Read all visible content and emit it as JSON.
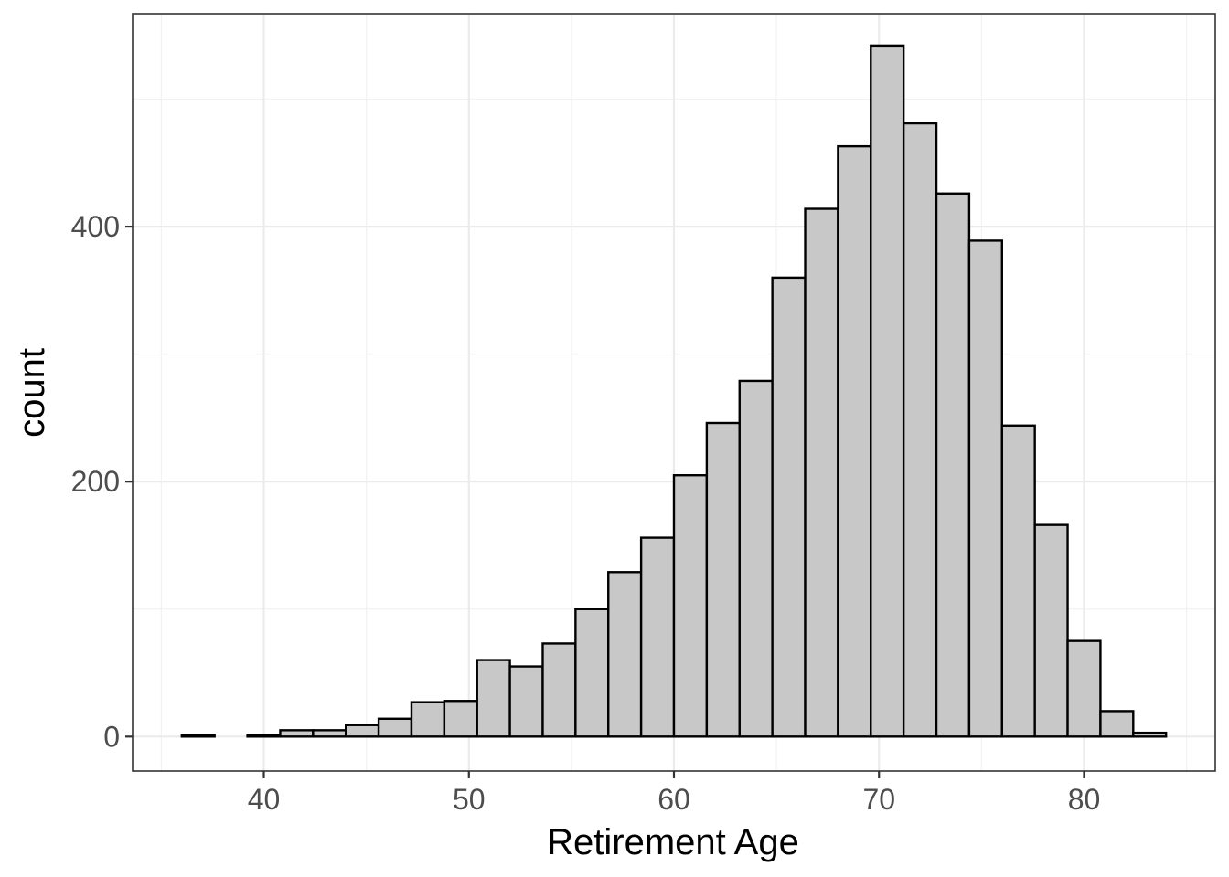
{
  "chart_data": {
    "type": "bar",
    "subtype": "histogram",
    "title": "",
    "xlabel": "Retirement Age",
    "ylabel": "count",
    "xlim": [
      33.6,
      86.4
    ],
    "ylim": [
      -27,
      567
    ],
    "x_ticks": [
      40,
      50,
      60,
      70,
      80
    ],
    "y_ticks": [
      0,
      200,
      400
    ],
    "grid": true,
    "legend": "none",
    "bin_width": 1.6,
    "bins": [
      {
        "start": 36.0,
        "end": 37.6,
        "count": 1
      },
      {
        "start": 37.6,
        "end": 39.2,
        "count": 0
      },
      {
        "start": 39.2,
        "end": 40.8,
        "count": 1
      },
      {
        "start": 40.8,
        "end": 42.4,
        "count": 5
      },
      {
        "start": 42.4,
        "end": 44.0,
        "count": 5
      },
      {
        "start": 44.0,
        "end": 45.6,
        "count": 9
      },
      {
        "start": 45.6,
        "end": 47.2,
        "count": 14
      },
      {
        "start": 47.2,
        "end": 48.8,
        "count": 27
      },
      {
        "start": 48.8,
        "end": 50.4,
        "count": 28
      },
      {
        "start": 50.4,
        "end": 52.0,
        "count": 60
      },
      {
        "start": 52.0,
        "end": 53.6,
        "count": 55
      },
      {
        "start": 53.6,
        "end": 55.2,
        "count": 73
      },
      {
        "start": 55.2,
        "end": 56.8,
        "count": 100
      },
      {
        "start": 56.8,
        "end": 58.4,
        "count": 129
      },
      {
        "start": 58.4,
        "end": 60.0,
        "count": 156
      },
      {
        "start": 60.0,
        "end": 61.6,
        "count": 205
      },
      {
        "start": 61.6,
        "end": 63.2,
        "count": 246
      },
      {
        "start": 63.2,
        "end": 64.8,
        "count": 279
      },
      {
        "start": 64.8,
        "end": 66.4,
        "count": 360
      },
      {
        "start": 66.4,
        "end": 68.0,
        "count": 414
      },
      {
        "start": 68.0,
        "end": 69.6,
        "count": 463
      },
      {
        "start": 69.6,
        "end": 71.2,
        "count": 542
      },
      {
        "start": 71.2,
        "end": 72.8,
        "count": 481
      },
      {
        "start": 72.8,
        "end": 74.4,
        "count": 426
      },
      {
        "start": 74.4,
        "end": 76.0,
        "count": 389
      },
      {
        "start": 76.0,
        "end": 77.6,
        "count": 244
      },
      {
        "start": 77.6,
        "end": 79.2,
        "count": 166
      },
      {
        "start": 79.2,
        "end": 80.8,
        "count": 75
      },
      {
        "start": 80.8,
        "end": 82.4,
        "count": 20
      },
      {
        "start": 82.4,
        "end": 84.0,
        "count": 3
      }
    ],
    "colors": {
      "bar_fill": "#c8c8c8",
      "bar_stroke": "#000000",
      "grid_major": "#ebebeb",
      "grid_minor": "#f2f2f2",
      "panel_border": "#333333",
      "tick_text": "#4d4d4d"
    }
  }
}
